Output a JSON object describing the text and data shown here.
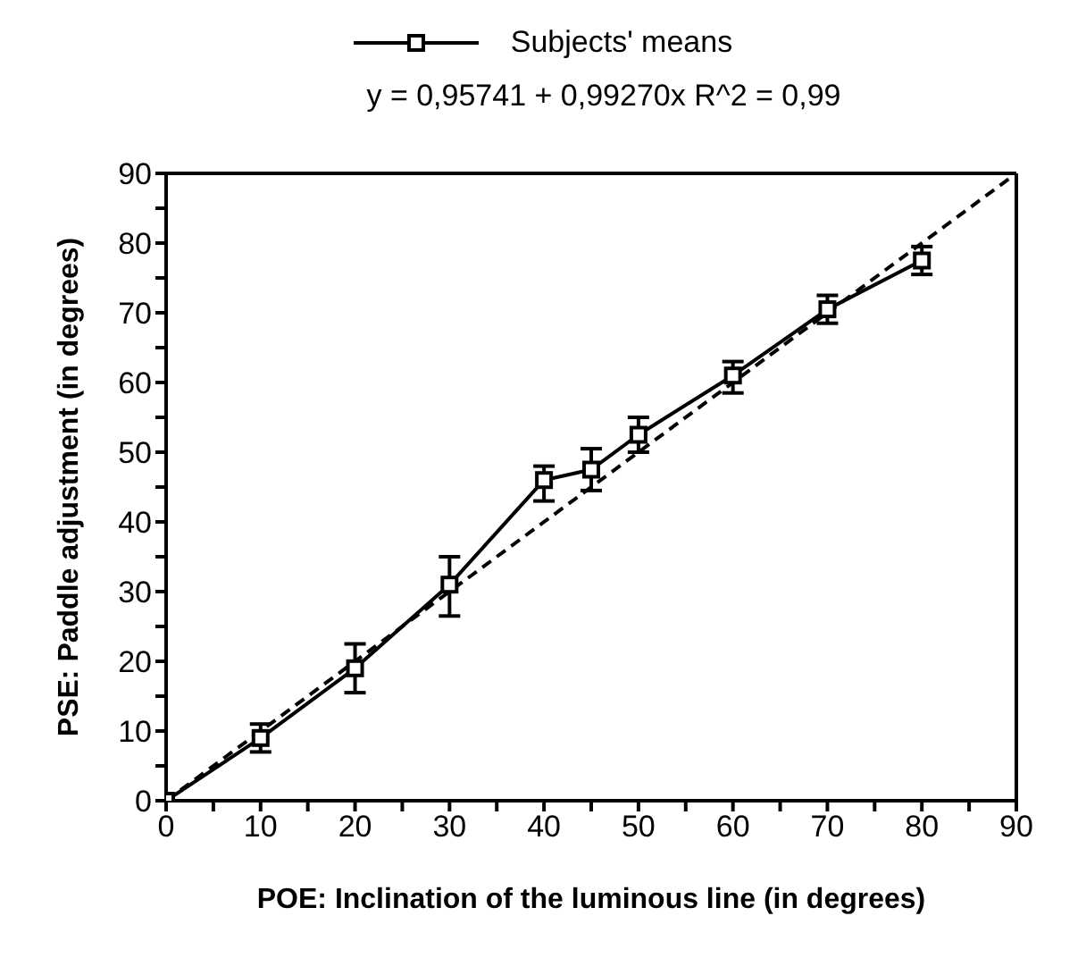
{
  "chart_data": {
    "type": "line",
    "xlabel": "POE: Inclination of the luminous line (in degrees)",
    "ylabel": "PSE:  Paddle  adjustment  (in degrees)",
    "annotations": [
      "y = 0,95741 + 0,99270x   R^2 = 0,99"
    ],
    "x": [
      0,
      10,
      20,
      30,
      40,
      45,
      50,
      60,
      70,
      80
    ],
    "series": [
      {
        "name": "Subjects' means",
        "color": "#000000",
        "values": [
          0,
          9,
          19,
          31,
          46,
          47.5,
          52.5,
          61,
          70.5,
          77.5
        ],
        "errors": [
          null,
          [
            7,
            11
          ],
          [
            15.5,
            22.5
          ],
          [
            26.5,
            35
          ],
          [
            43,
            48
          ],
          [
            44.5,
            50.5
          ],
          [
            50,
            55
          ],
          [
            58.5,
            63
          ],
          [
            68.5,
            72.5
          ],
          [
            75.5,
            79.5
          ]
        ],
        "marker": "square",
        "line_style": "solid"
      },
      {
        "type": "line",
        "color": "#000000",
        "x": [
          0,
          90
        ],
        "values": [
          0,
          90
        ],
        "marker": "none",
        "line_style": "dashed"
      }
    ],
    "xlim": [
      0,
      90
    ],
    "ylim": [
      0,
      90
    ],
    "xticks": [
      0,
      {
        "value": 5,
        "label": null
      },
      10,
      {
        "value": 15,
        "label": null
      },
      20,
      {
        "value": 25,
        "label": null
      },
      30,
      {
        "value": 35,
        "label": null
      },
      40,
      {
        "value": 45,
        "label": null
      },
      50,
      {
        "value": 55,
        "label": null
      },
      60,
      {
        "value": 65,
        "label": null
      },
      70,
      {
        "value": 75,
        "label": null
      },
      80,
      {
        "value": 85,
        "label": null
      },
      90
    ],
    "yticks": [
      0,
      {
        "value": 5,
        "label": null
      },
      10,
      {
        "value": 15,
        "label": null
      },
      20,
      {
        "value": 25,
        "label": null
      },
      30,
      {
        "value": 35,
        "label": null
      },
      40,
      {
        "value": 45,
        "label": null
      },
      50,
      {
        "value": 55,
        "label": null
      },
      60,
      {
        "value": 65,
        "label": null
      },
      70,
      {
        "value": 75,
        "label": null
      },
      80,
      {
        "value": 85,
        "label": null
      },
      90
    ],
    "grid": false,
    "legend": "top"
  }
}
